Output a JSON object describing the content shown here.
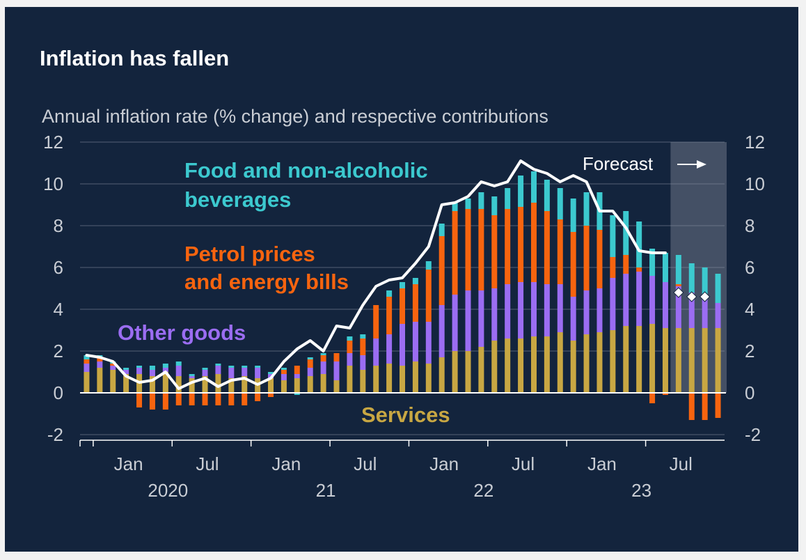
{
  "title": "Inflation has fallen",
  "subtitle": "Annual inflation rate (% change) and respective contributions",
  "chart_data": {
    "type": "bar",
    "stacked": true,
    "overlay_line": "CPI inflation",
    "ylim": [
      -2,
      12
    ],
    "y_ticks": [
      "12",
      "10",
      "8",
      "6",
      "4",
      "2",
      "0",
      "-2"
    ],
    "x_tick_labels": [
      {
        "month": "Jan",
        "year": "2020"
      },
      {
        "month": "Jul",
        "year": ""
      },
      {
        "month": "Jan",
        "year": "21"
      },
      {
        "month": "Jul",
        "year": ""
      },
      {
        "month": "Jan",
        "year": "22"
      },
      {
        "month": "Jul",
        "year": ""
      },
      {
        "month": "Jan",
        "year": "23"
      },
      {
        "month": "Jul",
        "year": ""
      }
    ],
    "periods": [
      "Dec 2019",
      "Jan 2020",
      "Feb 2020",
      "Mar 2020",
      "Apr 2020",
      "May 2020",
      "Jun 2020",
      "Jul 2020",
      "Aug 2020",
      "Sep 2020",
      "Oct 2020",
      "Nov 2020",
      "Dec 2020",
      "Jan 2021",
      "Feb 2021",
      "Mar 2021",
      "Apr 2021",
      "May 2021",
      "Jun 2021",
      "Jul 2021",
      "Aug 2021",
      "Sep 2021",
      "Oct 2021",
      "Nov 2021",
      "Dec 2021",
      "Jan 2022",
      "Feb 2022",
      "Mar 2022",
      "Apr 2022",
      "May 2022",
      "Jun 2022",
      "Jul 2022",
      "Aug 2022",
      "Sep 2022",
      "Oct 2022",
      "Nov 2022",
      "Dec 2022",
      "Jan 2023",
      "Feb 2023",
      "Mar 2023",
      "Apr 2023",
      "May 2023",
      "Jun 2023",
      "Jul 2023",
      "Aug 2023",
      "Sep 2023",
      "Oct 2023",
      "Nov 2023",
      "Dec 2023"
    ],
    "series": [
      {
        "name": "Services",
        "color": "#c8a743",
        "values": [
          1.0,
          1.2,
          1.1,
          0.9,
          0.9,
          0.8,
          1.0,
          0.8,
          0.7,
          0.8,
          0.9,
          0.7,
          0.8,
          0.7,
          0.7,
          0.6,
          0.7,
          0.8,
          0.9,
          0.6,
          1.3,
          1.1,
          1.3,
          1.4,
          1.3,
          1.5,
          1.4,
          1.7,
          2.0,
          2.0,
          2.2,
          2.5,
          2.6,
          2.6,
          2.7,
          2.7,
          2.9,
          2.5,
          2.8,
          2.9,
          3.0,
          3.2,
          3.2,
          3.3,
          3.1,
          3.1,
          3.1,
          3.1,
          3.1
        ]
      },
      {
        "name": "Other goods",
        "color": "#9b6df2",
        "values": [
          0.4,
          0.3,
          0.2,
          0.2,
          0.3,
          0.3,
          0.2,
          0.5,
          0.1,
          0.3,
          0.4,
          0.5,
          0.4,
          0.5,
          0.2,
          0.3,
          0.2,
          0.4,
          0.6,
          0.9,
          0.6,
          0.7,
          1.3,
          1.4,
          2.0,
          1.9,
          2.0,
          2.5,
          2.7,
          2.9,
          2.7,
          2.5,
          2.6,
          2.7,
          2.6,
          2.5,
          2.3,
          2.1,
          2.1,
          2.1,
          2.5,
          2.5,
          2.6,
          2.3,
          2.2,
          2.0,
          1.7,
          1.4,
          1.2
        ]
      },
      {
        "name": "Petrol prices and energy bills",
        "color": "#f7640f",
        "values": [
          0.2,
          0.2,
          0.1,
          0.0,
          -0.7,
          -0.8,
          -0.8,
          -0.6,
          -0.6,
          -0.6,
          -0.6,
          -0.6,
          -0.6,
          -0.4,
          -0.2,
          0.2,
          0.4,
          0.4,
          0.3,
          0.4,
          0.6,
          0.8,
          1.6,
          1.8,
          1.7,
          1.8,
          2.5,
          3.3,
          4.0,
          3.9,
          3.9,
          3.5,
          3.6,
          3.6,
          3.8,
          3.5,
          3.1,
          3.1,
          3.1,
          2.8,
          1.0,
          0.9,
          0.2,
          -0.5,
          -0.1,
          0.1,
          -1.3,
          -1.3,
          -1.2
        ]
      },
      {
        "name": "Food and non-alcoholic beverages",
        "color": "#3cc9cf",
        "values": [
          0.2,
          0.1,
          0.1,
          0.1,
          0.1,
          0.2,
          0.2,
          0.2,
          0.1,
          0.1,
          0.1,
          0.1,
          0.1,
          0.1,
          0.1,
          0.1,
          -0.1,
          0.1,
          0.1,
          0.0,
          0.2,
          0.2,
          0.0,
          0.3,
          0.3,
          0.3,
          0.4,
          0.6,
          0.4,
          0.5,
          0.8,
          0.9,
          1.0,
          1.5,
          1.5,
          1.5,
          1.5,
          1.6,
          1.6,
          1.8,
          2.0,
          2.1,
          2.2,
          1.3,
          1.4,
          1.4,
          1.4,
          1.5,
          1.4
        ]
      }
    ],
    "line": {
      "color": "#ffffff",
      "values": [
        1.8,
        1.7,
        1.5,
        0.8,
        0.5,
        0.6,
        1.0,
        0.2,
        0.5,
        0.7,
        0.3,
        0.6,
        0.7,
        0.4,
        0.7,
        1.5,
        2.1,
        2.5,
        2.0,
        3.2,
        3.1,
        4.2,
        5.1,
        5.4,
        5.5,
        6.2,
        7.0,
        9.0,
        9.1,
        9.4,
        10.1,
        9.9,
        10.1,
        11.1,
        10.7,
        10.5,
        10.1,
        10.4,
        10.1,
        8.7,
        8.7,
        7.9,
        6.8,
        6.7,
        6.7
      ]
    },
    "forecast": {
      "label": "Forecast",
      "start_period": "Sep 2023",
      "values": [
        4.8,
        4.6,
        4.6
      ]
    },
    "annotations": [
      {
        "lines": [
          "Food and non-alcoholic",
          "beverages"
        ],
        "color": "#3cc9cf"
      },
      {
        "lines": [
          "Petrol prices",
          "and energy bills"
        ],
        "color": "#f7640f"
      },
      {
        "lines": [
          "Other goods"
        ],
        "color": "#9b6df2"
      },
      {
        "lines": [
          "Services"
        ],
        "color": "#c8a743"
      }
    ],
    "colors": {
      "background": "#13243d",
      "forecast_shade": "#4a5569",
      "grid": "#8a93a3",
      "text": "#c9cdd4"
    }
  }
}
